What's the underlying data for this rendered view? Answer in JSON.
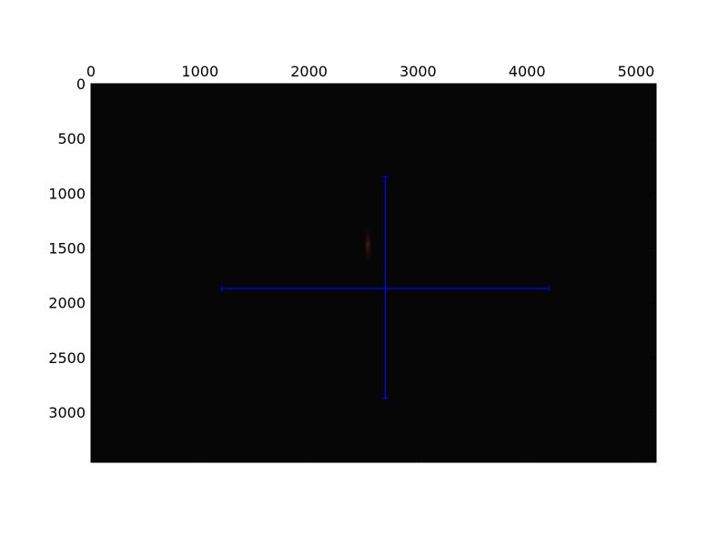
{
  "chart_data": {
    "type": "scatter",
    "title": "",
    "xlabel": "",
    "ylabel": "",
    "background": "image",
    "image_description_colors": {
      "background": "#060606",
      "faint_streak": "#3a1a0c"
    },
    "xlim": [
      0,
      5184
    ],
    "ylim": [
      3456,
      0
    ],
    "y_inverted": true,
    "x_ticks": [
      0,
      1000,
      2000,
      3000,
      4000,
      5000
    ],
    "y_ticks": [
      0,
      500,
      1000,
      1500,
      2000,
      2500,
      3000
    ],
    "x_tick_labels": [
      "0",
      "1000",
      "2000",
      "3000",
      "4000",
      "5000"
    ],
    "y_tick_labels": [
      "0",
      "500",
      "1000",
      "1500",
      "2000",
      "2500",
      "3000"
    ],
    "x_axis_position": "top",
    "grid": false,
    "series": [
      {
        "kind": "errorbar",
        "color": "#0000ff",
        "x": 2700,
        "y": 1870,
        "xerr": [
          1500,
          1500
        ],
        "yerr": [
          1020,
          1000
        ]
      }
    ]
  }
}
